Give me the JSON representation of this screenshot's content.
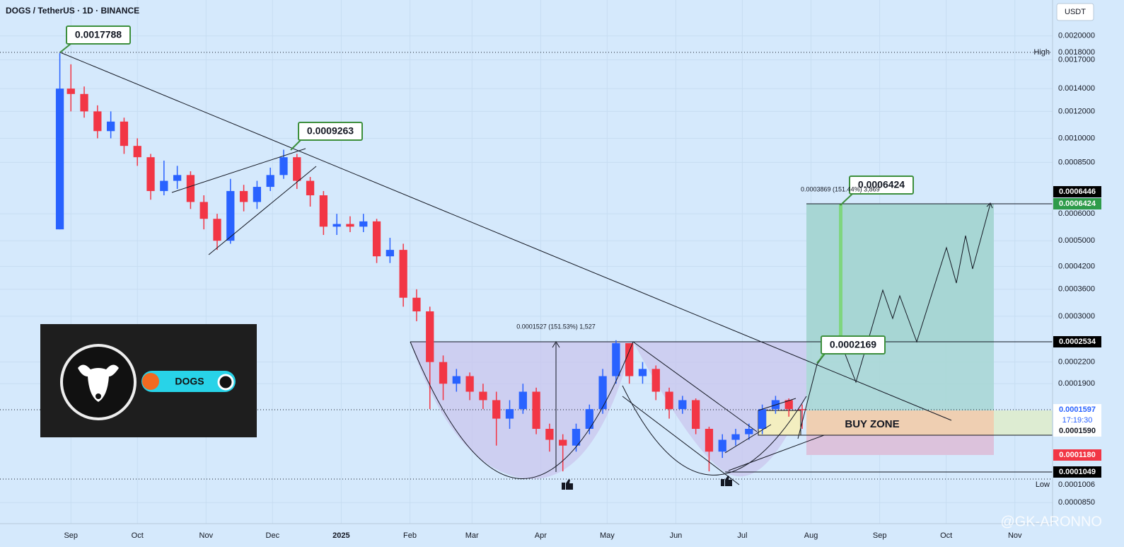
{
  "chart_data": {
    "type": "candlestick",
    "title": "DOGS / TetherUS · 1D · BINANCE",
    "currency": "USDT",
    "log_scale": true,
    "up_color": "#2962ff",
    "down_color": "#f23645",
    "xlim": [
      -32,
      443
    ],
    "xticks": [
      {
        "value": 0,
        "label": "Sep"
      },
      {
        "value": 30,
        "label": "Oct"
      },
      {
        "value": 61,
        "label": "Nov"
      },
      {
        "value": 91,
        "label": "Dec"
      },
      {
        "value": 122,
        "label": "2025"
      },
      {
        "value": 153,
        "label": "Feb"
      },
      {
        "value": 181,
        "label": "Mar"
      },
      {
        "value": 212,
        "label": "Apr"
      },
      {
        "value": 242,
        "label": "May"
      },
      {
        "value": 273,
        "label": "Jun"
      },
      {
        "value": 303,
        "label": "Jul"
      },
      {
        "value": 334,
        "label": "Aug"
      },
      {
        "value": 365,
        "label": "Sep"
      },
      {
        "value": 395,
        "label": "Oct"
      },
      {
        "value": 426,
        "label": "Nov"
      }
    ],
    "ylim": [
      7.37e-05,
      0.00255
    ],
    "yticks": [
      {
        "value": 0.002,
        "label": "0.0020000"
      },
      {
        "value": 0.0017,
        "label": "0.0017000"
      },
      {
        "value": 0.0014,
        "label": "0.0014000"
      },
      {
        "value": 0.0012,
        "label": "0.0012000"
      },
      {
        "value": 0.001,
        "label": "0.0010000"
      },
      {
        "value": 0.00085,
        "label": "0.0008500"
      },
      {
        "value": 0.0006,
        "label": "0.0006000"
      },
      {
        "value": 0.0005,
        "label": "0.0005000"
      },
      {
        "value": 0.00042,
        "label": "0.0004200"
      },
      {
        "value": 0.00036,
        "label": "0.0003600"
      },
      {
        "value": 0.0003,
        "label": "0.0003000"
      },
      {
        "value": 0.00022,
        "label": "0.0002200"
      },
      {
        "value": 0.00019,
        "label": "0.0001900"
      },
      {
        "value": 8.5e-05,
        "label": "0.0000850"
      }
    ],
    "x": [
      -5,
      0,
      6,
      12,
      18,
      24,
      30,
      36,
      42,
      48,
      54,
      60,
      66,
      72,
      78,
      84,
      90,
      96,
      102,
      108,
      114,
      120,
      126,
      132,
      138,
      144,
      150,
      156,
      162,
      168,
      174,
      180,
      186,
      192,
      198,
      204,
      210,
      216,
      222,
      228,
      234,
      240,
      246,
      252,
      258,
      264,
      270,
      276,
      282,
      288,
      294,
      300,
      306,
      312,
      318,
      324,
      330
    ],
    "open": [
      0.00054,
      0.0014,
      0.00135,
      0.0012,
      0.00105,
      0.00112,
      0.00095,
      0.00088,
      0.0007,
      0.00075,
      0.00078,
      0.00065,
      0.00058,
      0.0005,
      0.0007,
      0.00065,
      0.00072,
      0.00078,
      0.00088,
      0.00075,
      0.00068,
      0.00055,
      0.00056,
      0.00055,
      0.00057,
      0.00045,
      0.00047,
      0.00034,
      0.00031,
      0.00022,
      0.00019,
      0.0002,
      0.00018,
      0.00017,
      0.00015,
      0.00016,
      0.00018,
      0.00014,
      0.00013,
      0.000125,
      0.00014,
      0.00016,
      0.0002,
      0.00025,
      0.0002,
      0.00021,
      0.00018,
      0.00016,
      0.00017,
      0.00014,
      0.00012,
      0.00013,
      0.000135,
      0.00014,
      0.00016,
      0.00017,
      0.00016
    ],
    "high": [
      0.00178,
      0.00165,
      0.00142,
      0.00125,
      0.0012,
      0.00115,
      0.001,
      0.0009,
      0.00086,
      0.00083,
      0.0008,
      0.00068,
      0.0006,
      0.00076,
      0.00073,
      0.00075,
      0.00082,
      0.000926,
      0.0009,
      0.00077,
      0.0007,
      0.0006,
      0.00059,
      0.0006,
      0.00058,
      0.00051,
      0.00049,
      0.00036,
      0.00032,
      0.00023,
      0.00021,
      0.000205,
      0.00019,
      0.00018,
      0.00017,
      0.00019,
      0.000185,
      0.000145,
      0.000135,
      0.000145,
      0.000165,
      0.00021,
      0.000255,
      0.00025,
      0.00022,
      0.000215,
      0.000185,
      0.000175,
      0.000172,
      0.000142,
      0.000135,
      0.00014,
      0.000145,
      0.000165,
      0.000175,
      0.000172,
      0.000165
    ],
    "low": [
      0.00054,
      0.0012,
      0.00115,
      0.001,
      0.001,
      0.0009,
      0.00083,
      0.00066,
      0.00068,
      0.00071,
      0.00062,
      0.00054,
      0.00047,
      0.00049,
      0.00061,
      0.00062,
      0.0007,
      0.00076,
      0.00071,
      0.00063,
      0.00052,
      0.00052,
      0.00053,
      0.00053,
      0.00043,
      0.00043,
      0.00032,
      0.00029,
      0.00016,
      0.00017,
      0.00018,
      0.00017,
      0.00016,
      0.000125,
      0.00014,
      0.000155,
      0.000135,
      0.00012,
      0.000105,
      0.00012,
      0.000135,
      0.000155,
      0.00019,
      0.00019,
      0.00019,
      0.00017,
      0.00015,
      0.000155,
      0.000135,
      0.000105,
      0.000115,
      0.000125,
      0.00013,
      0.000135,
      0.000155,
      0.000152,
      0.00014
    ],
    "close": [
      0.0014,
      0.00135,
      0.0012,
      0.00105,
      0.00112,
      0.00095,
      0.00088,
      0.0007,
      0.00075,
      0.00078,
      0.00065,
      0.00058,
      0.0005,
      0.0007,
      0.00065,
      0.00072,
      0.00078,
      0.00088,
      0.00075,
      0.00068,
      0.00055,
      0.00056,
      0.00055,
      0.00057,
      0.00045,
      0.00047,
      0.00034,
      0.00031,
      0.00022,
      0.00019,
      0.0002,
      0.00018,
      0.00017,
      0.00015,
      0.00016,
      0.00018,
      0.00014,
      0.00013,
      0.000125,
      0.00014,
      0.00016,
      0.0002,
      0.00025,
      0.0002,
      0.00021,
      0.00018,
      0.00016,
      0.00017,
      0.00014,
      0.00012,
      0.00013,
      0.000135,
      0.00014,
      0.00016,
      0.00017,
      0.00016,
      0.0001597
    ],
    "price_tags": {
      "high_label": "High",
      "high": "0.0018000",
      "low_label": "Low",
      "low": "0.0001006",
      "target_top": "0.0006446",
      "target": "0.0006424",
      "resistance": "0.0002534",
      "last": "0.0001597",
      "countdown": "17:19:30",
      "zone_low": "0.0001590",
      "stop": "0.0001180",
      "bottom": "0.0001049"
    },
    "callouts": [
      "0.0017788",
      "0.0009263",
      "0.0006424",
      "0.0002169"
    ],
    "measure_1": "0.0001527 (151.53%) 1,527",
    "measure_2": "0.0003869 (151.44%) 3,869",
    "zone_label": "BUY ZONE",
    "logo_label": "DOGS",
    "watermark": "@GK-ARONNO"
  }
}
